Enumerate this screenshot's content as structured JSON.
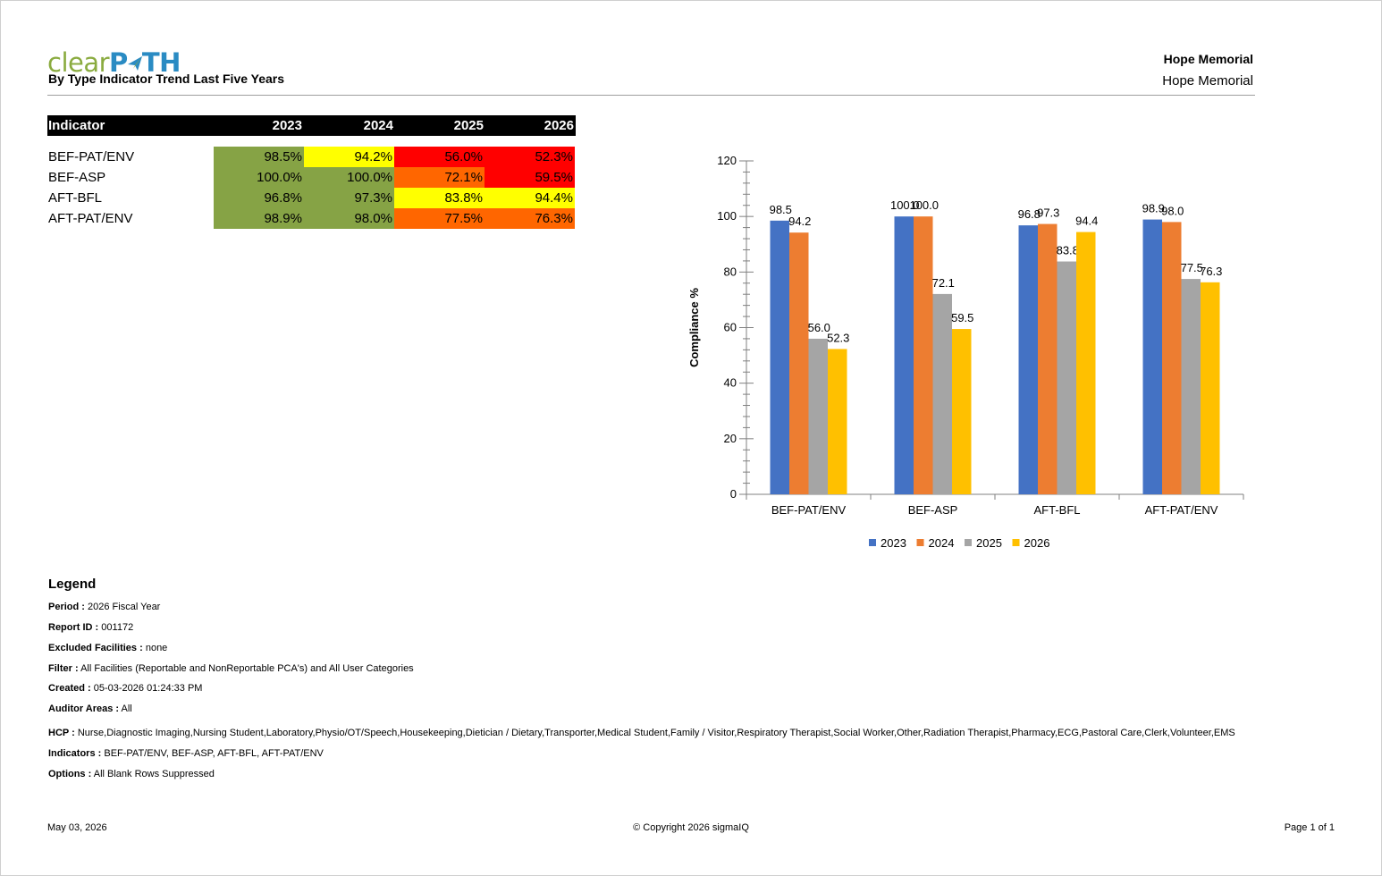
{
  "header": {
    "logo_part1": "clear",
    "logo_part2": "P",
    "logo_part3": "TH",
    "subtitle": "By Type Indicator Trend Last Five Years",
    "hospital_bold": "Hope Memorial",
    "hospital": "Hope Memorial"
  },
  "table": {
    "header": [
      "Indicator",
      "2023",
      "2024",
      "2025",
      "2026"
    ],
    "rows": [
      {
        "label": "BEF-PAT/ENV",
        "cells": [
          {
            "text": "98.5%",
            "color": "#86a345"
          },
          {
            "text": "94.2%",
            "color": "#ffff00"
          },
          {
            "text": "56.0%",
            "color": "#ff0000"
          },
          {
            "text": "52.3%",
            "color": "#ff0000"
          }
        ]
      },
      {
        "label": "BEF-ASP",
        "cells": [
          {
            "text": "100.0%",
            "color": "#86a345"
          },
          {
            "text": "100.0%",
            "color": "#86a345"
          },
          {
            "text": "72.1%",
            "color": "#ff6600"
          },
          {
            "text": "59.5%",
            "color": "#ff0000"
          }
        ]
      },
      {
        "label": "AFT-BFL",
        "cells": [
          {
            "text": "96.8%",
            "color": "#86a345"
          },
          {
            "text": "97.3%",
            "color": "#86a345"
          },
          {
            "text": "83.8%",
            "color": "#ffff00"
          },
          {
            "text": "94.4%",
            "color": "#ffff00"
          }
        ]
      },
      {
        "label": "AFT-PAT/ENV",
        "cells": [
          {
            "text": "98.9%",
            "color": "#86a345"
          },
          {
            "text": "98.0%",
            "color": "#86a345"
          },
          {
            "text": "77.5%",
            "color": "#ff6600"
          },
          {
            "text": "76.3%",
            "color": "#ff6600"
          }
        ]
      }
    ]
  },
  "chart_data": {
    "type": "bar",
    "categories": [
      "BEF-PAT/ENV",
      "BEF-ASP",
      "AFT-BFL",
      "AFT-PAT/ENV"
    ],
    "series": [
      {
        "name": "2023",
        "color": "#4472c4",
        "values": [
          98.5,
          100.0,
          96.8,
          98.9
        ],
        "labels": [
          "98.5",
          "100.0",
          "96.8",
          "98.9"
        ]
      },
      {
        "name": "2024",
        "color": "#ed7d31",
        "values": [
          94.2,
          100.0,
          97.3,
          98.0
        ],
        "labels": [
          "94.2",
          "100.0",
          "97.3",
          "98.0"
        ]
      },
      {
        "name": "2025",
        "color": "#a5a5a5",
        "values": [
          56.0,
          72.1,
          83.8,
          77.5
        ],
        "labels": [
          "56.0",
          "72.1",
          "83.8",
          "77.5"
        ]
      },
      {
        "name": "2026",
        "color": "#ffc000",
        "values": [
          52.3,
          59.5,
          94.4,
          76.3
        ],
        "labels": [
          "52.3",
          "59.5",
          "94.4",
          "76.3"
        ]
      }
    ],
    "ylabel": "Compliance %",
    "xlabel": "",
    "ylim": [
      0,
      120
    ],
    "yticks": [
      "0",
      "20",
      "40",
      "60",
      "80",
      "100",
      "120"
    ],
    "grid": false,
    "legend": "bottom"
  },
  "legend": {
    "title": "Legend",
    "items": [
      {
        "label": "Period :",
        "value": "2026 Fiscal Year"
      },
      {
        "label": "Report ID :",
        "value": "001172"
      },
      {
        "label": "Excluded Facilities :",
        "value": "none"
      },
      {
        "label": "Filter :",
        "value": "All Facilities (Reportable and NonReportable PCA's) and All User Categories"
      },
      {
        "label": "Created :",
        "value": "05-03-2026 01:24:33 PM"
      },
      {
        "label": "Auditor Areas :",
        "value": "All"
      },
      {
        "label": "HCP :",
        "value": "Nurse,Diagnostic Imaging,Nursing Student,Laboratory,Physio/OT/Speech,Housekeeping,Dietician / Dietary,Transporter,Medical Student,Family / Visitor,Respiratory Therapist,Social Worker,Other,Radiation Therapist,Pharmacy,ECG,Pastoral Care,Clerk,Volunteer,EMS"
      },
      {
        "label": "Indicators :",
        "value": "BEF-PAT/ENV, BEF-ASP, AFT-BFL, AFT-PAT/ENV"
      },
      {
        "label": "Options :",
        "value": "All Blank Rows Suppressed"
      }
    ]
  },
  "footer": {
    "date": "May 03, 2026",
    "copyright": "© Copyright 2026 sigmaIQ",
    "page": "Page 1 of 1"
  }
}
